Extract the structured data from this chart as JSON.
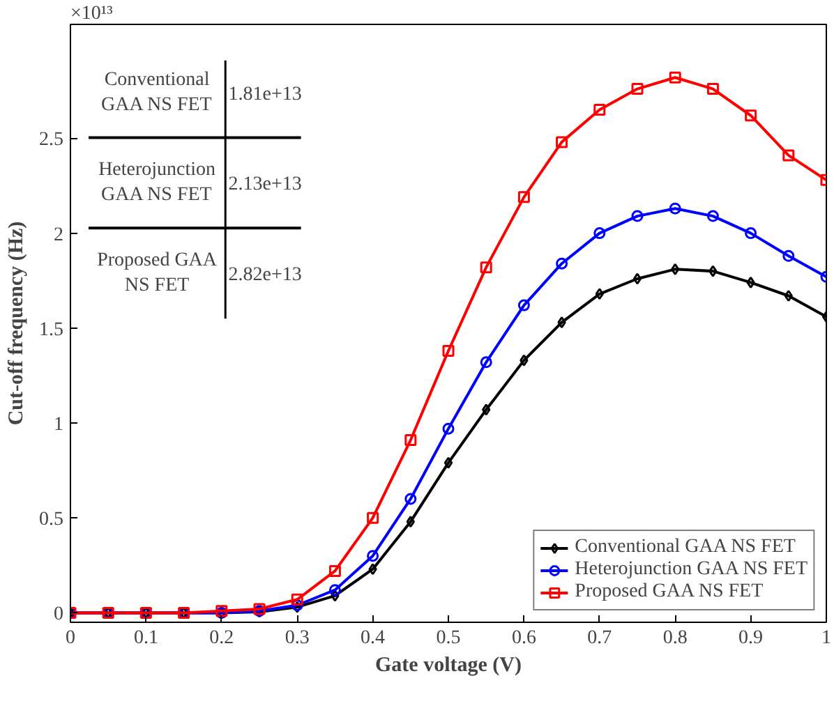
{
  "chart_data": {
    "type": "line",
    "xlabel": "Gate voltage (V)",
    "ylabel": "Cut-off frequency (Hz)",
    "x": [
      0,
      0.05,
      0.1,
      0.15,
      0.2,
      0.25,
      0.3,
      0.35,
      0.4,
      0.45,
      0.5,
      0.55,
      0.6,
      0.65,
      0.7,
      0.75,
      0.8,
      0.85,
      0.9,
      0.95,
      1.0
    ],
    "series": [
      {
        "name": "Conventional GAA NS FET",
        "color": "#000000",
        "marker": "diamond",
        "values": [
          0,
          0,
          0,
          0,
          0,
          0.005,
          0.03,
          0.09,
          0.23,
          0.48,
          0.79,
          1.07,
          1.33,
          1.53,
          1.68,
          1.76,
          1.81,
          1.8,
          1.74,
          1.67,
          1.56
        ]
      },
      {
        "name": "Heterojunction GAA NS FET",
        "color": "#0000ff",
        "marker": "circle",
        "values": [
          0,
          0,
          0,
          0,
          0,
          0.01,
          0.04,
          0.12,
          0.3,
          0.6,
          0.97,
          1.32,
          1.62,
          1.84,
          2.0,
          2.09,
          2.13,
          2.09,
          2.0,
          1.88,
          1.77
        ]
      },
      {
        "name": "Proposed GAA NS FET",
        "color": "#ff0000",
        "marker": "square",
        "values": [
          0,
          0,
          0,
          0,
          0.01,
          0.02,
          0.07,
          0.22,
          0.5,
          0.91,
          1.38,
          1.82,
          2.19,
          2.48,
          2.65,
          2.76,
          2.82,
          2.76,
          2.62,
          2.41,
          2.28
        ]
      }
    ],
    "xlim": [
      0,
      1
    ],
    "xticks": [
      0,
      0.1,
      0.2,
      0.3,
      0.4,
      0.5,
      0.6,
      0.7,
      0.8,
      0.9,
      1
    ],
    "ylim": [
      -0.05,
      3.1
    ],
    "yticks": [
      0,
      0.5,
      1,
      1.5,
      2,
      2.5
    ],
    "annotations": [
      "×10¹³",
      "Conventional\nGAA NS FET",
      "1.81e+13",
      "Heterojunction\nGAA NS FET",
      "2.13e+13",
      "Proposed GAA\nNS FET",
      "2.82e+13"
    ],
    "grid": false,
    "legend": "bottom right",
    "line_style": "solid"
  }
}
